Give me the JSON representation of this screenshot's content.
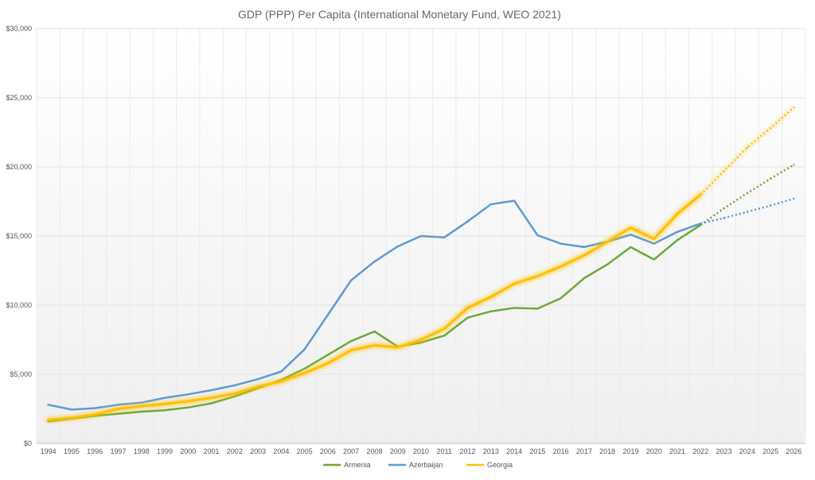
{
  "chart_data": {
    "type": "line",
    "title": "GDP (PPP) Per Capita (International Monetary Fund, WEO 2021)",
    "xlabel": "",
    "ylabel": "",
    "ylim": [
      0,
      30000
    ],
    "y_ticks": [
      0,
      5000,
      10000,
      15000,
      20000,
      25000,
      30000
    ],
    "y_tick_labels": [
      "$0",
      "$5,000",
      "$10,000",
      "$15,000",
      "$20,000",
      "$25,000",
      "$30,000"
    ],
    "categories": [
      "1994",
      "1995",
      "1996",
      "1997",
      "1998",
      "1999",
      "2000",
      "2001",
      "2002",
      "2003",
      "2004",
      "2005",
      "2006",
      "2007",
      "2008",
      "2009",
      "2010",
      "2011",
      "2012",
      "2013",
      "2014",
      "2015",
      "2016",
      "2017",
      "2018",
      "2019",
      "2020",
      "2021",
      "2022",
      "2023",
      "2024",
      "2025",
      "2026"
    ],
    "projection_start": "2022",
    "legend_position": "bottom-center",
    "grid": true,
    "series": [
      {
        "name": "Armenia",
        "color": "#6aaa3a",
        "values": [
          1600,
          1800,
          2000,
          2150,
          2300,
          2400,
          2600,
          2900,
          3400,
          4000,
          4600,
          5400,
          6400,
          7400,
          8100,
          7000,
          7300,
          7800,
          9100,
          9550,
          9800,
          9750,
          10500,
          11950,
          12950,
          14200,
          13300,
          14700,
          15800,
          17000,
          18100,
          19150,
          20150
        ]
      },
      {
        "name": "Azerbaijan",
        "color": "#5b9bd5",
        "values": [
          2800,
          2450,
          2550,
          2800,
          2950,
          3300,
          3550,
          3850,
          4200,
          4650,
          5200,
          6800,
          9300,
          11800,
          13150,
          14250,
          15000,
          14900,
          16050,
          17300,
          17550,
          15050,
          14450,
          14200,
          14600,
          15100,
          14450,
          15300,
          15900,
          16300,
          16750,
          17200,
          17700
        ]
      },
      {
        "name": "Georgia",
        "color": "#ffc000",
        "values": [
          1700,
          1850,
          2100,
          2500,
          2700,
          2850,
          3050,
          3300,
          3600,
          4100,
          4500,
          5100,
          5800,
          6750,
          7100,
          6950,
          7500,
          8300,
          9800,
          10600,
          11550,
          12100,
          12800,
          13600,
          14600,
          15600,
          14800,
          16600,
          18000,
          19700,
          21400,
          22800,
          24300
        ]
      }
    ]
  }
}
